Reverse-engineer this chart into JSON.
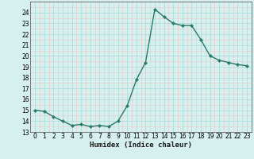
{
  "x": [
    0,
    1,
    2,
    3,
    4,
    5,
    6,
    7,
    8,
    9,
    10,
    11,
    12,
    13,
    14,
    15,
    16,
    17,
    18,
    19,
    20,
    21,
    22,
    23
  ],
  "y": [
    15.0,
    14.9,
    14.4,
    14.0,
    13.6,
    13.7,
    13.5,
    13.6,
    13.5,
    14.0,
    15.4,
    17.8,
    19.4,
    24.3,
    23.6,
    23.0,
    22.8,
    22.8,
    21.5,
    20.0,
    19.6,
    19.4,
    19.2,
    19.1
  ],
  "line_color": "#2a7a6a",
  "marker_color": "#2a7a6a",
  "bg_color": "#d5f0ee",
  "grid_major_color": "#a8d8d4",
  "grid_minor_color": "#e8c8c8",
  "xlabel": "Humidex (Indice chaleur)",
  "ylim": [
    13,
    25
  ],
  "xlim": [
    -0.5,
    23.5
  ],
  "yticks": [
    13,
    14,
    15,
    16,
    17,
    18,
    19,
    20,
    21,
    22,
    23,
    24
  ],
  "xticks": [
    0,
    1,
    2,
    3,
    4,
    5,
    6,
    7,
    8,
    9,
    10,
    11,
    12,
    13,
    14,
    15,
    16,
    17,
    18,
    19,
    20,
    21,
    22,
    23
  ],
  "xtick_labels": [
    "0",
    "1",
    "2",
    "3",
    "4",
    "5",
    "6",
    "7",
    "8",
    "9",
    "10",
    "11",
    "12",
    "13",
    "14",
    "15",
    "16",
    "17",
    "18",
    "19",
    "20",
    "21",
    "22",
    "23"
  ],
  "marker_size": 2.2,
  "line_width": 1.0,
  "tick_fontsize": 5.5,
  "xlabel_fontsize": 6.5
}
